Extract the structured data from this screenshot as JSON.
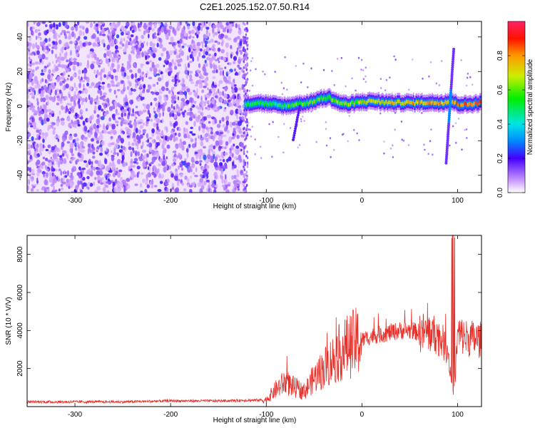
{
  "title": "C2E1.2025.152.07.50.R14",
  "chart_data": [
    {
      "type": "heatmap",
      "xlabel": "Height of straight line (km)",
      "ylabel": "Frequency (Hz)",
      "xlim": [
        -350,
        125
      ],
      "ylim": [
        -50,
        49
      ],
      "xticks": [
        -300,
        -200,
        -100,
        0,
        100
      ],
      "yticks": [
        -40,
        -20,
        0,
        20,
        40
      ],
      "colorbar": {
        "label": "Normalized spectral amplitude",
        "range": [
          0,
          1
        ],
        "ticks": [
          0.0,
          0.2,
          0.4,
          0.6,
          0.8
        ]
      },
      "features": [
        {
          "kind": "broadband_noise",
          "x_range": [
            -350,
            -123
          ],
          "y_range": [
            -50,
            49
          ],
          "level": 0.25
        },
        {
          "kind": "trace",
          "points": [
            [
              -123,
              1
            ],
            [
              -110,
              2
            ],
            [
              -95,
              1
            ],
            [
              -80,
              0
            ],
            [
              -70,
              1
            ],
            [
              -55,
              2
            ],
            [
              -45,
              4
            ],
            [
              -35,
              5
            ],
            [
              -25,
              2
            ],
            [
              -15,
              1
            ],
            [
              -5,
              2
            ],
            [
              10,
              3
            ],
            [
              25,
              2
            ],
            [
              40,
              2
            ],
            [
              55,
              2
            ],
            [
              70,
              2
            ],
            [
              85,
              2
            ],
            [
              92,
              3
            ],
            [
              100,
              1
            ],
            [
              110,
              1
            ],
            [
              125,
              2
            ]
          ]
        },
        {
          "kind": "spike",
          "x": 92,
          "y_range": [
            -33,
            33
          ]
        },
        {
          "kind": "dip",
          "x": -65,
          "y_range": [
            -20,
            0
          ]
        }
      ]
    },
    {
      "type": "line",
      "xlabel": "Height of straight line (km)",
      "ylabel": "SNR (10 * V/V)",
      "xlim": [
        -350,
        125
      ],
      "ylim": [
        0,
        9000
      ],
      "xticks": [
        -300,
        -200,
        -100,
        0,
        100
      ],
      "yticks": [
        2000,
        4000,
        6000,
        8000
      ],
      "color": "#e8302a",
      "series": [
        {
          "x": [
            -350,
            -300,
            -250,
            -200,
            -150,
            -100,
            -90,
            -80,
            -70,
            -60,
            -50,
            -40,
            -30,
            -20,
            -10,
            0,
            10,
            20,
            30,
            40,
            50,
            60,
            70,
            80,
            90,
            95,
            97,
            100,
            110,
            125
          ],
          "y": [
            250,
            250,
            250,
            300,
            300,
            350,
            900,
            1300,
            1000,
            800,
            1500,
            2000,
            2500,
            3000,
            3300,
            3500,
            3700,
            3800,
            3900,
            4000,
            4000,
            3900,
            3900,
            3700,
            3000,
            600,
            1200,
            3800,
            3600,
            3500
          ]
        }
      ]
    }
  ]
}
